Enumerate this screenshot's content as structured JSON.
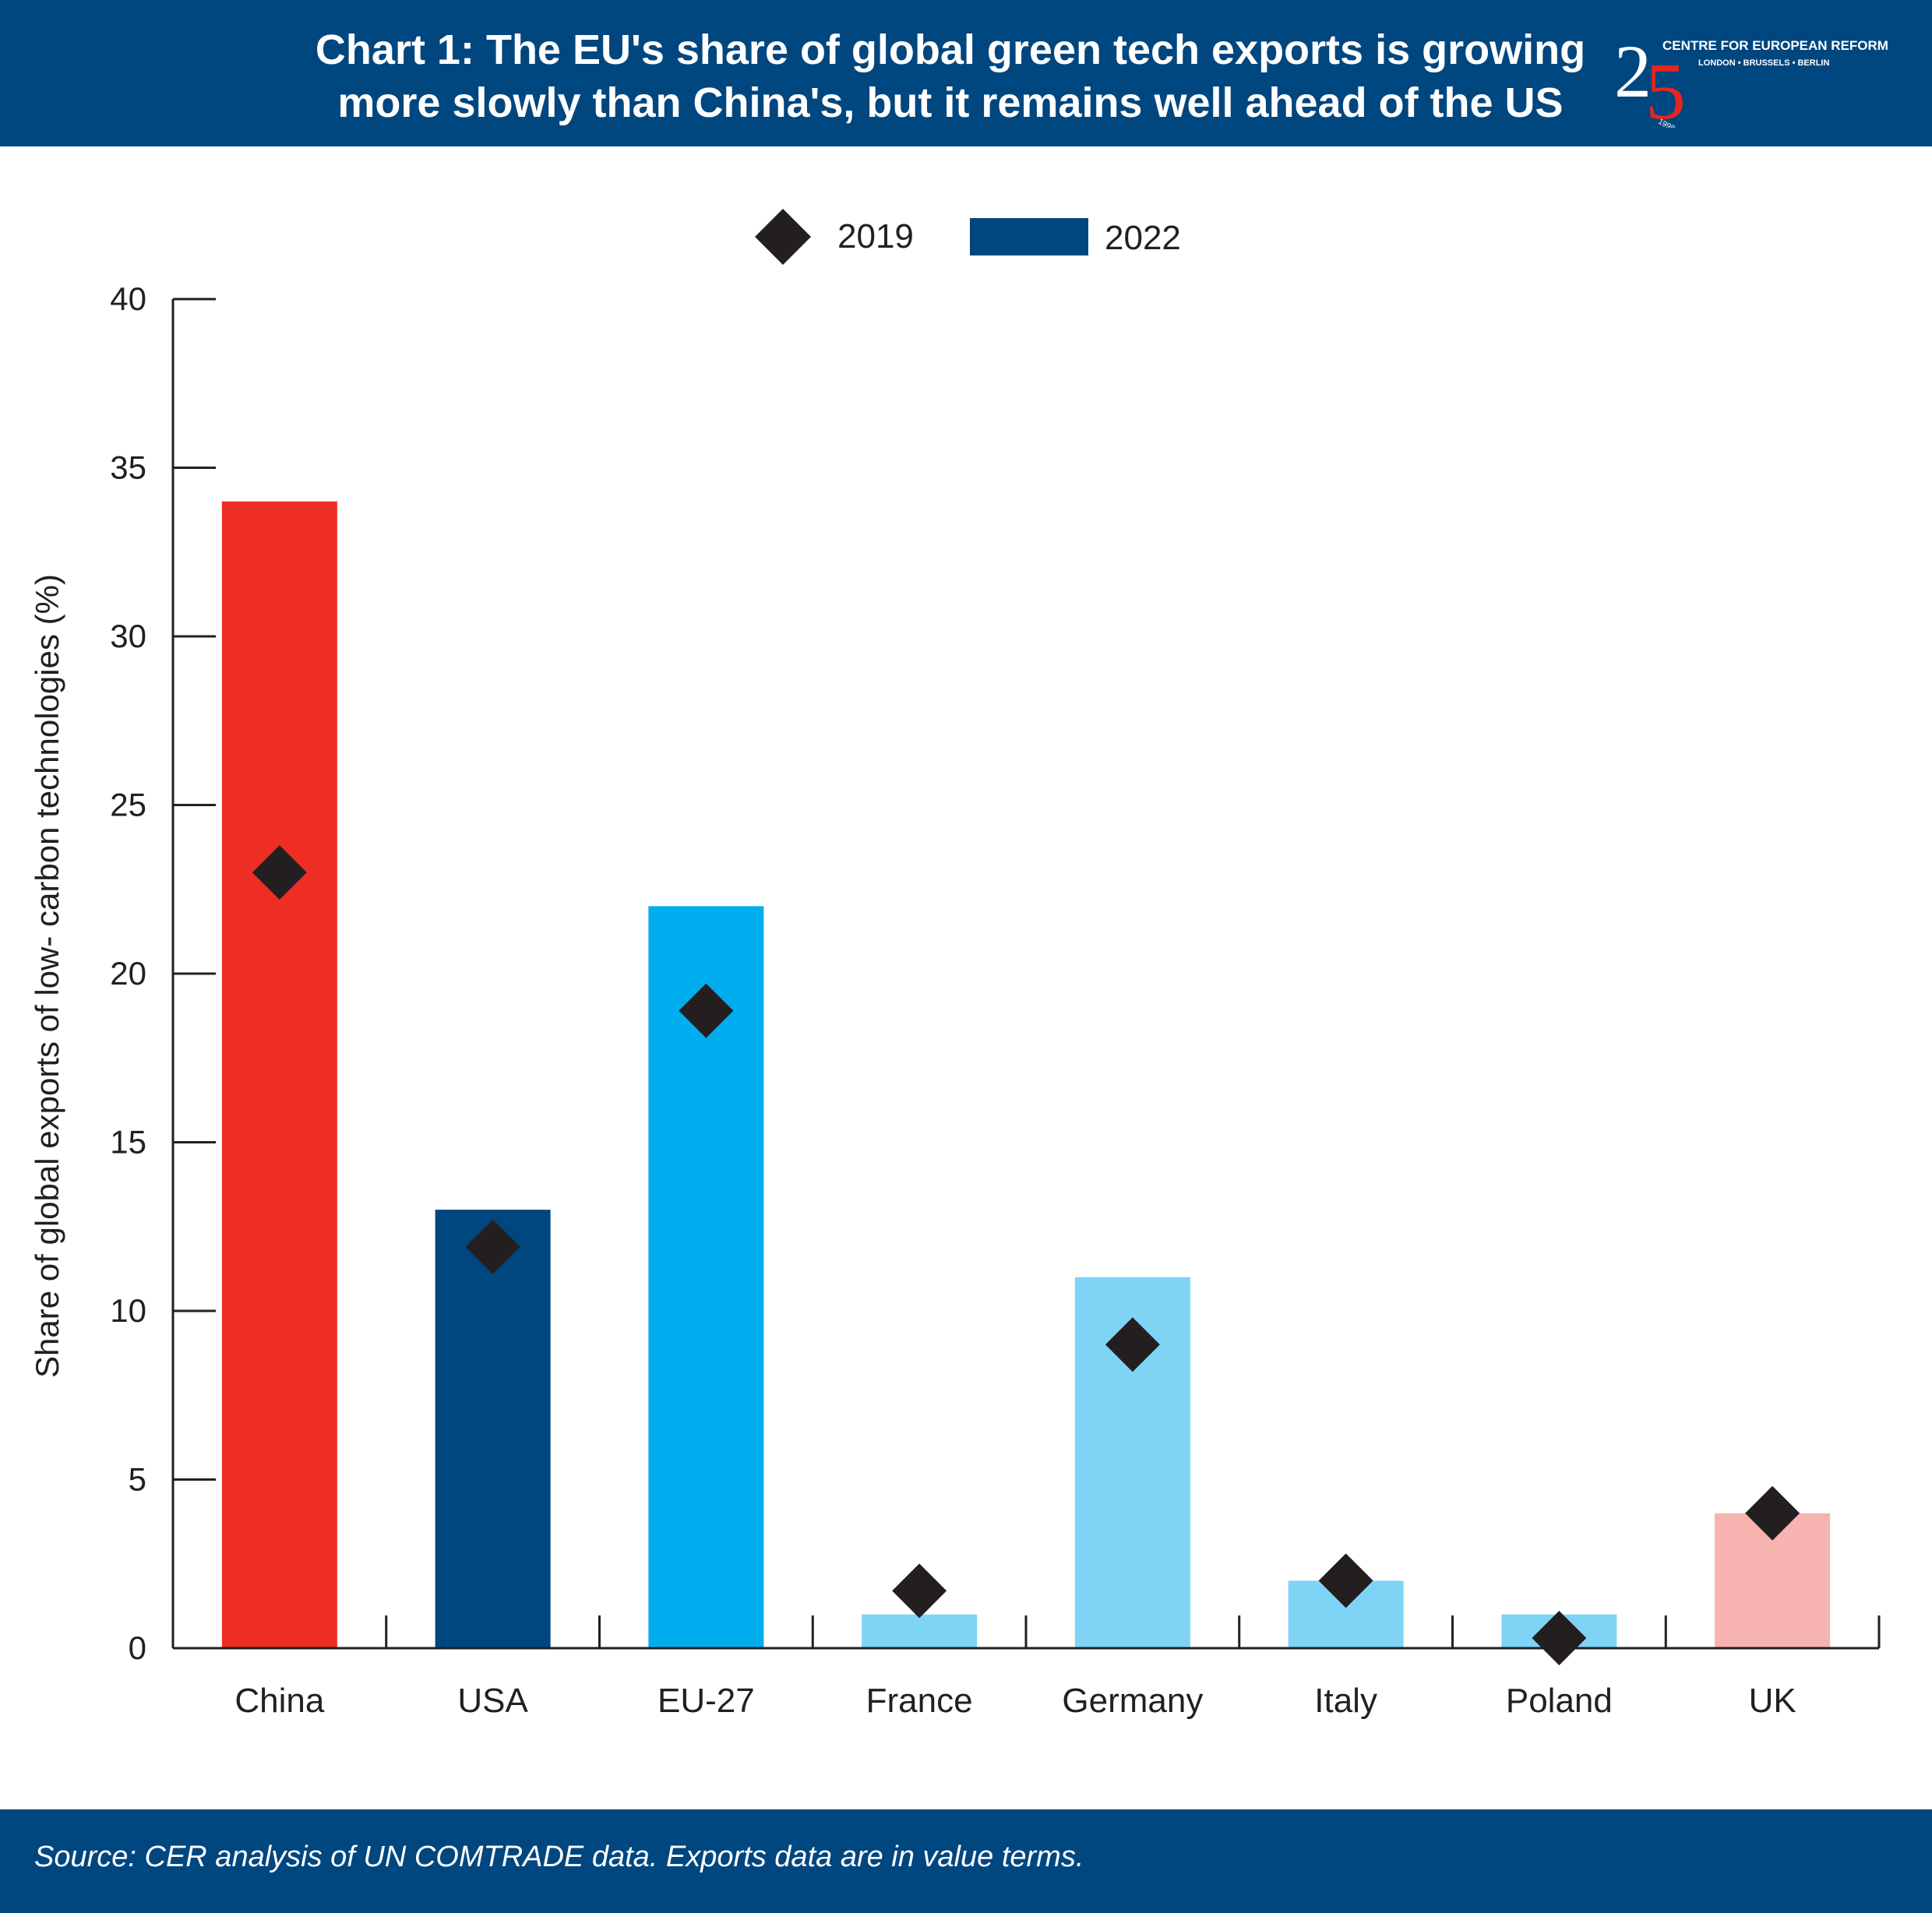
{
  "header": {
    "title_line1": "Chart 1: The EU's share of global green tech exports is growing",
    "title_line2": "more slowly than China's, but it remains well ahead of the US",
    "logo": {
      "digits": "25",
      "org": "CENTRE FOR EUROPEAN REFORM",
      "cities": [
        "LONDON",
        "BRUSSELS",
        "BERLIN"
      ],
      "years": "1998-2023"
    }
  },
  "footer": {
    "source": "Source: CER analysis of UN COMTRADE data. Exports data are in value terms."
  },
  "colors": {
    "header_bg": "#00467f",
    "china": "#ee2e24",
    "usa": "#00467f",
    "eu27": "#00aeef",
    "eu_members": "#7fd4f6",
    "uk": "#f6b3b0",
    "marker": "#231f20"
  },
  "chart_data": {
    "type": "bar",
    "categories": [
      "China",
      "USA",
      "EU-27",
      "France",
      "Germany",
      "Italy",
      "Poland",
      "UK"
    ],
    "series": [
      {
        "name": "2022",
        "kind": "bar",
        "values": [
          34,
          13,
          22,
          1,
          11,
          2,
          1,
          4
        ],
        "colors": [
          "#ee2e24",
          "#00467f",
          "#00aeef",
          "#7fd4f6",
          "#7fd4f6",
          "#7fd4f6",
          "#7fd4f6",
          "#f6b3b0"
        ]
      },
      {
        "name": "2019",
        "kind": "marker",
        "marker": "diamond",
        "values": [
          23,
          11.9,
          18.9,
          1.7,
          9.0,
          2.0,
          0.3,
          4.0
        ]
      }
    ],
    "ylabel": "Share of global exports of low- carbon technologies (%)",
    "xlabel": "",
    "ylim": [
      0,
      40
    ],
    "yticks": [
      0,
      5,
      10,
      15,
      20,
      25,
      30,
      35,
      40
    ],
    "legend": {
      "placement": "top-center",
      "entries": [
        "2019",
        "2022"
      ]
    },
    "grid": false
  }
}
